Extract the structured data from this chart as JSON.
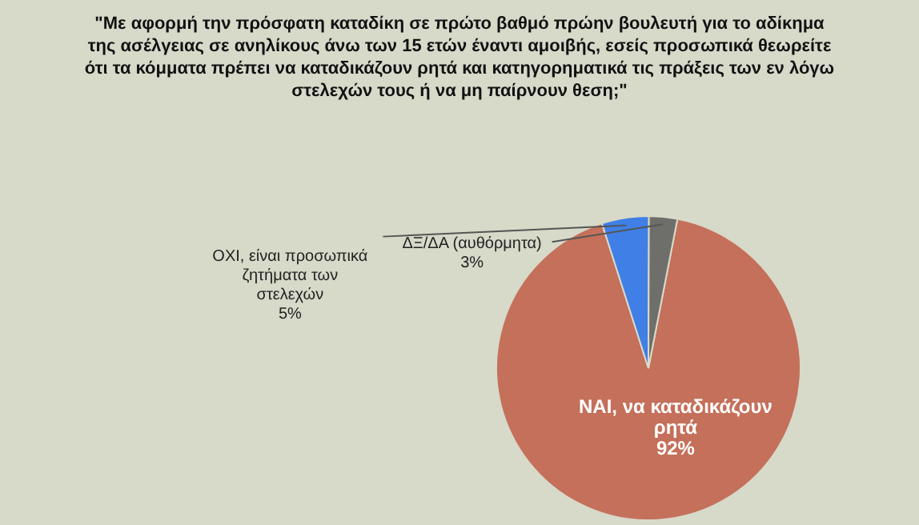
{
  "chart_data": {
    "type": "pie",
    "title": "\"Με αφορμή την πρόσφατη καταδίκη σε πρώτο βαθμό πρώην βουλευτή για το αδίκημα της ασέλγειας σε ανηλίκους άνω των 15 ετών έναντι αμοιβής, εσείς προσωπικά θεωρείτε ότι τα κόμματα πρέπει να καταδικάζουν ρητά και κατηγορηματικά τις πράξεις των εν λόγω στελεχών τους ή να μη παίρνουν θεση;\"",
    "categories": [
      "ΝΑΙ, να καταδικάζουν ρητά",
      "ΟΧΙ, είναι προσωπικά ζητήματα των στελεχών",
      "ΔΞ/ΔΑ (αυθόρμητα)"
    ],
    "values": [
      92,
      5,
      3
    ],
    "value_labels": [
      "92%",
      "5%",
      "3%"
    ],
    "colors": [
      "#c4705a",
      "#3f7fe6",
      "#6e6e6a"
    ]
  }
}
